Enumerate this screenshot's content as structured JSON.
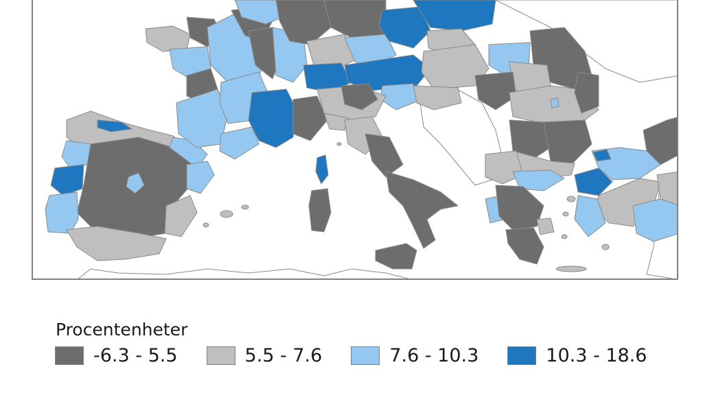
{
  "map": {
    "legend": {
      "title": "Procentenheter",
      "classes": [
        {
          "label": "-6.3 - 5.5",
          "color": "#6d6d6d"
        },
        {
          "label": "5.5 - 7.6",
          "color": "#bfbfbf"
        },
        {
          "label": "7.6 - 10.3",
          "color": "#95c8f0"
        },
        {
          "label": "10.3 - 18.6",
          "color": "#1f77bf"
        }
      ]
    },
    "colors": {
      "frame": "#808080",
      "region_border": "#8a8a8a",
      "water": "#ffffff",
      "outside_land": "#ffffff"
    }
  }
}
